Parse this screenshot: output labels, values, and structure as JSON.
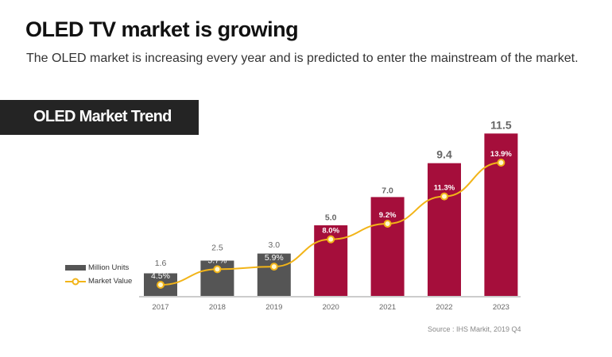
{
  "header": {
    "title": "OLED TV market is growing",
    "subtitle": "The OLED market is increasing every year and is predicted to enter the mainstream of the market."
  },
  "section": {
    "title": "OLED Market Trend"
  },
  "source": "Source : IHS Markit, 2019 Q4",
  "colors": {
    "historical_bar": "#555555",
    "forecast_bar": "#A50E3B",
    "line": "#F2B418",
    "section_bg": "#242424"
  },
  "chart_data": {
    "type": "bar",
    "categories": [
      "2017",
      "2018",
      "2019",
      "2020",
      "2021",
      "2022",
      "2023"
    ],
    "series": [
      {
        "name": "Million Units",
        "type": "bar",
        "values": [
          1.6,
          2.5,
          3.0,
          5.0,
          7.0,
          9.4,
          11.5
        ],
        "labels": [
          "1.6",
          "2.5",
          "3.0",
          "5.0",
          "7.0",
          "9.4",
          "11.5"
        ]
      },
      {
        "name": "Market Value",
        "type": "line",
        "values": [
          4.5,
          5.7,
          5.9,
          8.0,
          9.2,
          11.3,
          13.9
        ],
        "labels": [
          "4.5%",
          "5.7%",
          "5.9%",
          "8.0%",
          "9.2%",
          "11.3%",
          "13.9%"
        ],
        "unit": "%"
      }
    ],
    "forecast_from": "2020",
    "legend_placement": "left",
    "grid": false
  }
}
